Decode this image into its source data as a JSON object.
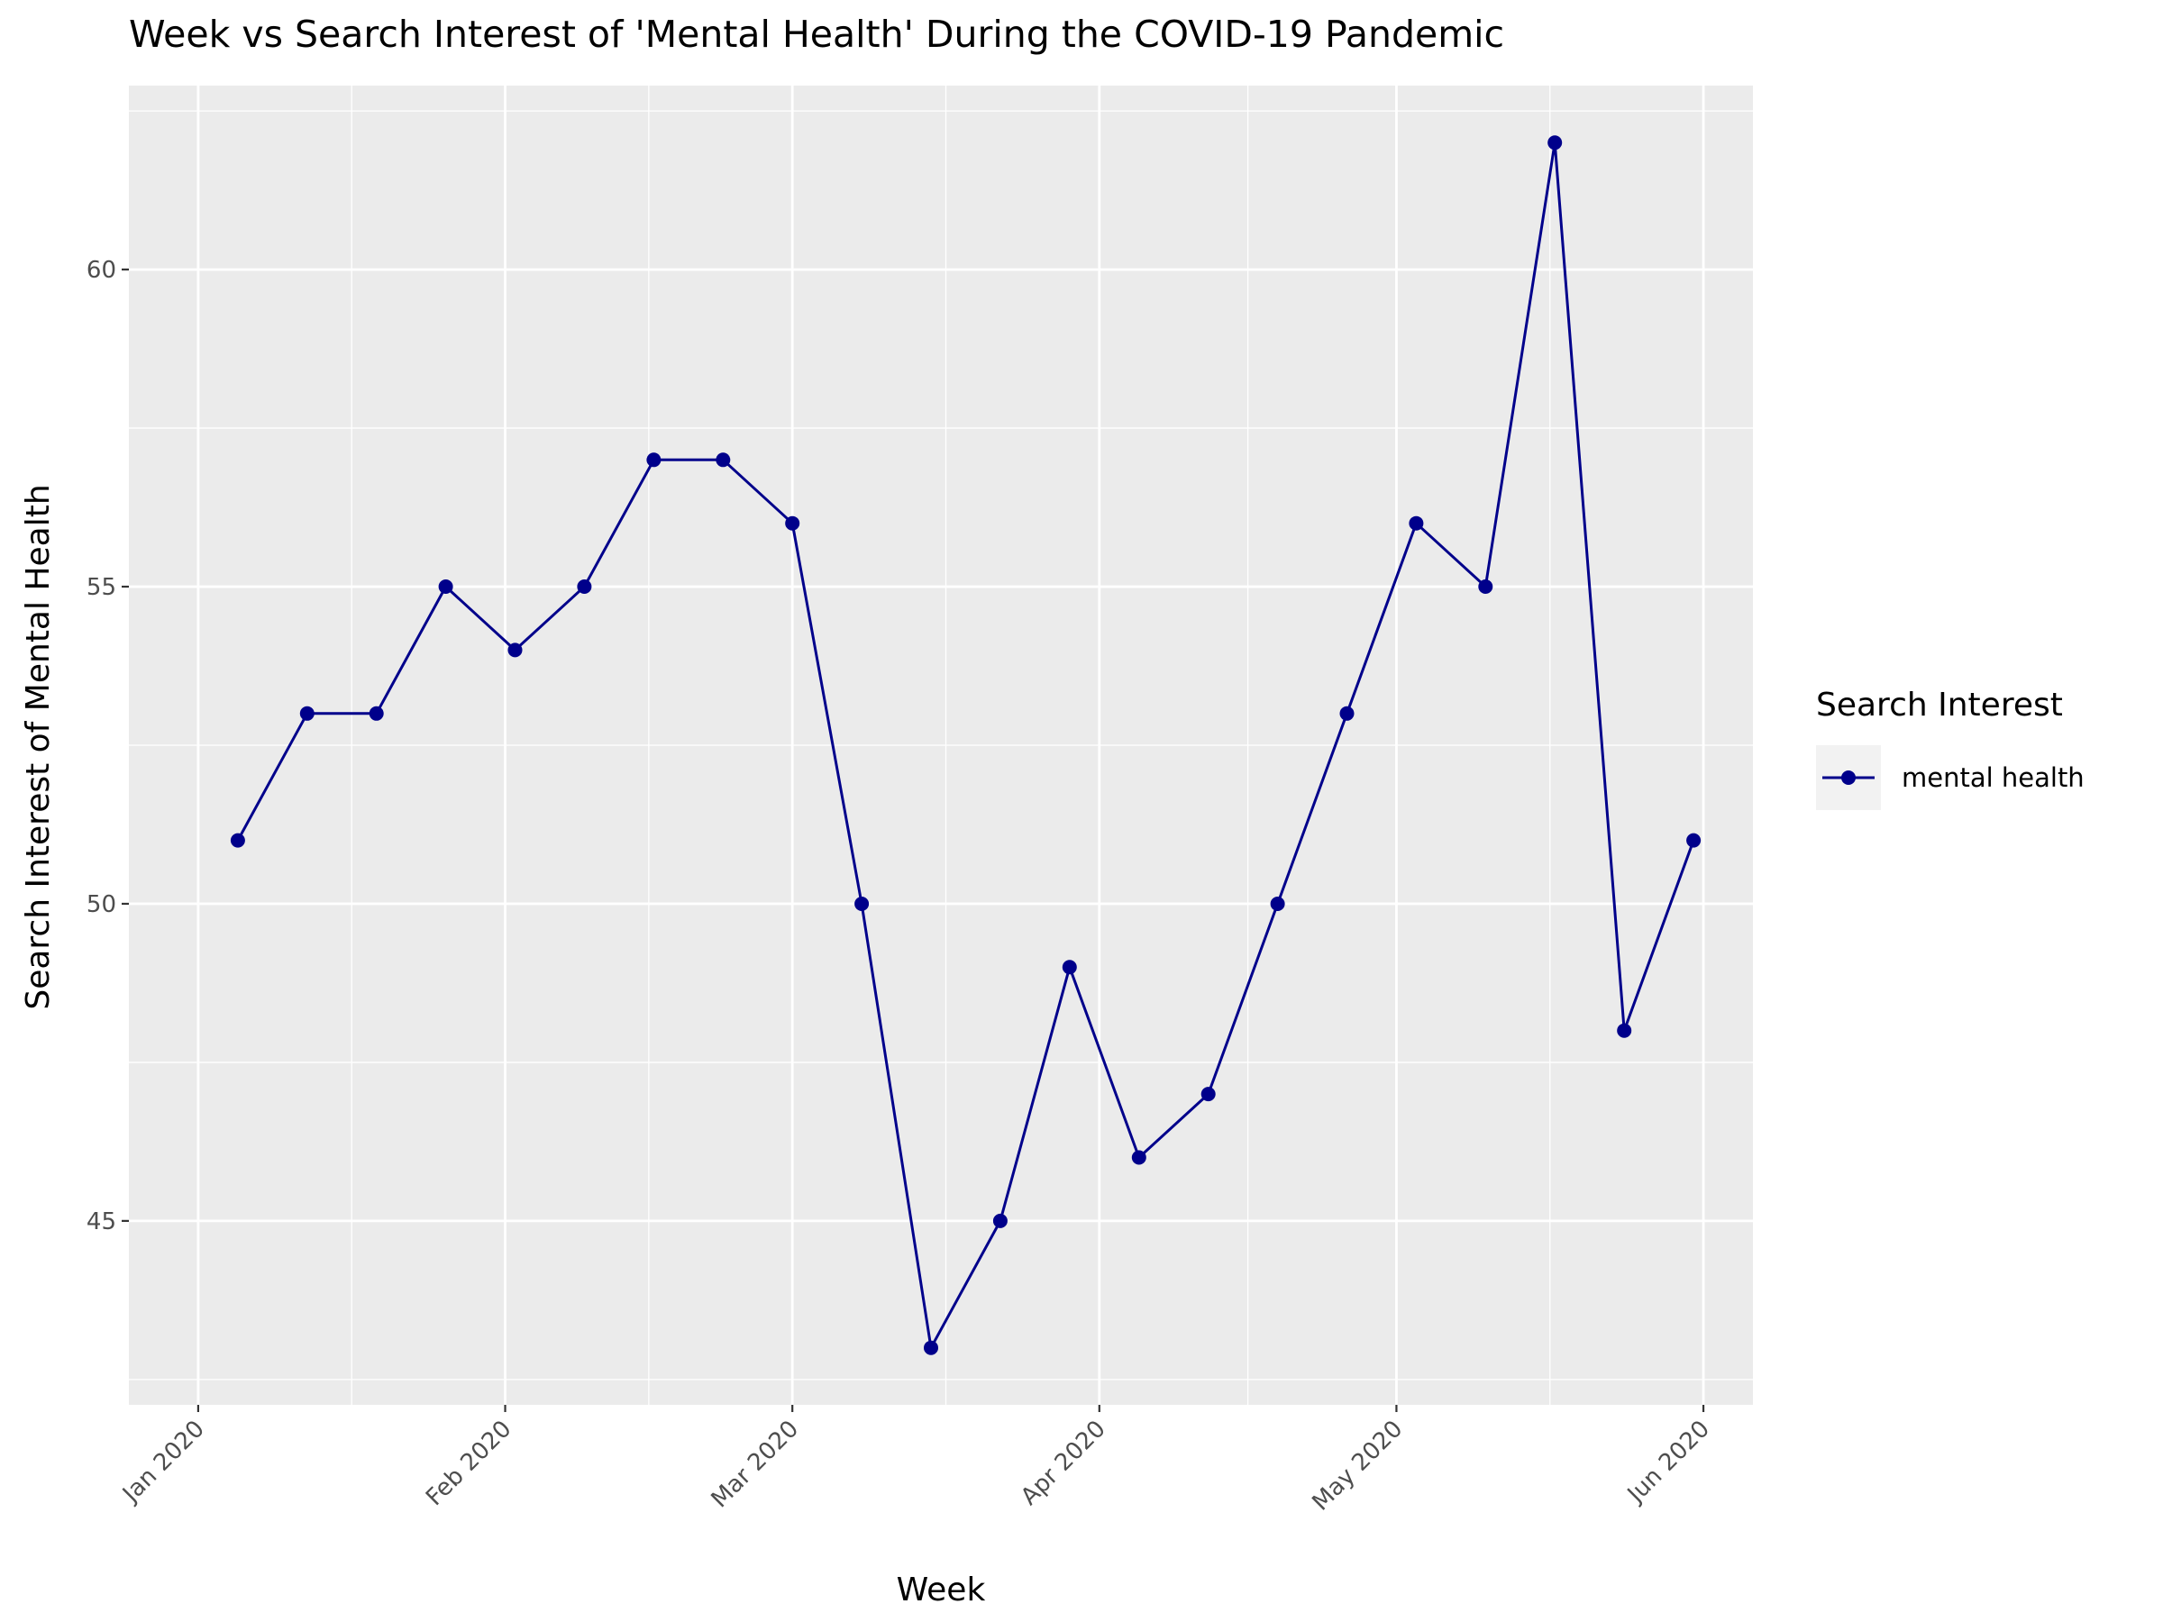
{
  "chart_data": {
    "type": "line",
    "title": "Week vs Search Interest of 'Mental Health' During the COVID-19 Pandemic",
    "xlabel": "Week",
    "ylabel": "Search Interest of Mental Health",
    "x_tick_labels": [
      "Jan 2020",
      "Feb 2020",
      "Mar 2020",
      "Apr 2020",
      "May 2020",
      "Jun 2020"
    ],
    "x_tick_dates": [
      "2020-01-01",
      "2020-02-01",
      "2020-03-01",
      "2020-04-01",
      "2020-05-01",
      "2020-06-01"
    ],
    "xlim": [
      "2019-12-25",
      "2020-06-06"
    ],
    "y_ticks": [
      45,
      50,
      55,
      60
    ],
    "ylim": [
      42.1,
      62.9
    ],
    "grid": true,
    "legend": {
      "title": "Search Interest",
      "position": "right",
      "entries": [
        "mental health"
      ]
    },
    "colors": {
      "line": "#00008b",
      "panel": "#ebebeb",
      "grid": "#ffffff"
    },
    "series": [
      {
        "name": "mental health",
        "x": [
          "2020-01-05",
          "2020-01-12",
          "2020-01-19",
          "2020-01-26",
          "2020-02-02",
          "2020-02-09",
          "2020-02-16",
          "2020-02-23",
          "2020-03-01",
          "2020-03-08",
          "2020-03-15",
          "2020-03-22",
          "2020-03-29",
          "2020-04-05",
          "2020-04-12",
          "2020-04-19",
          "2020-04-26",
          "2020-05-03",
          "2020-05-10",
          "2020-05-17",
          "2020-05-24",
          "2020-05-31"
        ],
        "values": [
          51,
          53,
          53,
          55,
          54,
          55,
          57,
          57,
          56,
          50,
          43,
          45,
          49,
          46,
          47,
          50,
          53,
          56,
          55,
          62,
          48,
          51
        ]
      }
    ]
  }
}
